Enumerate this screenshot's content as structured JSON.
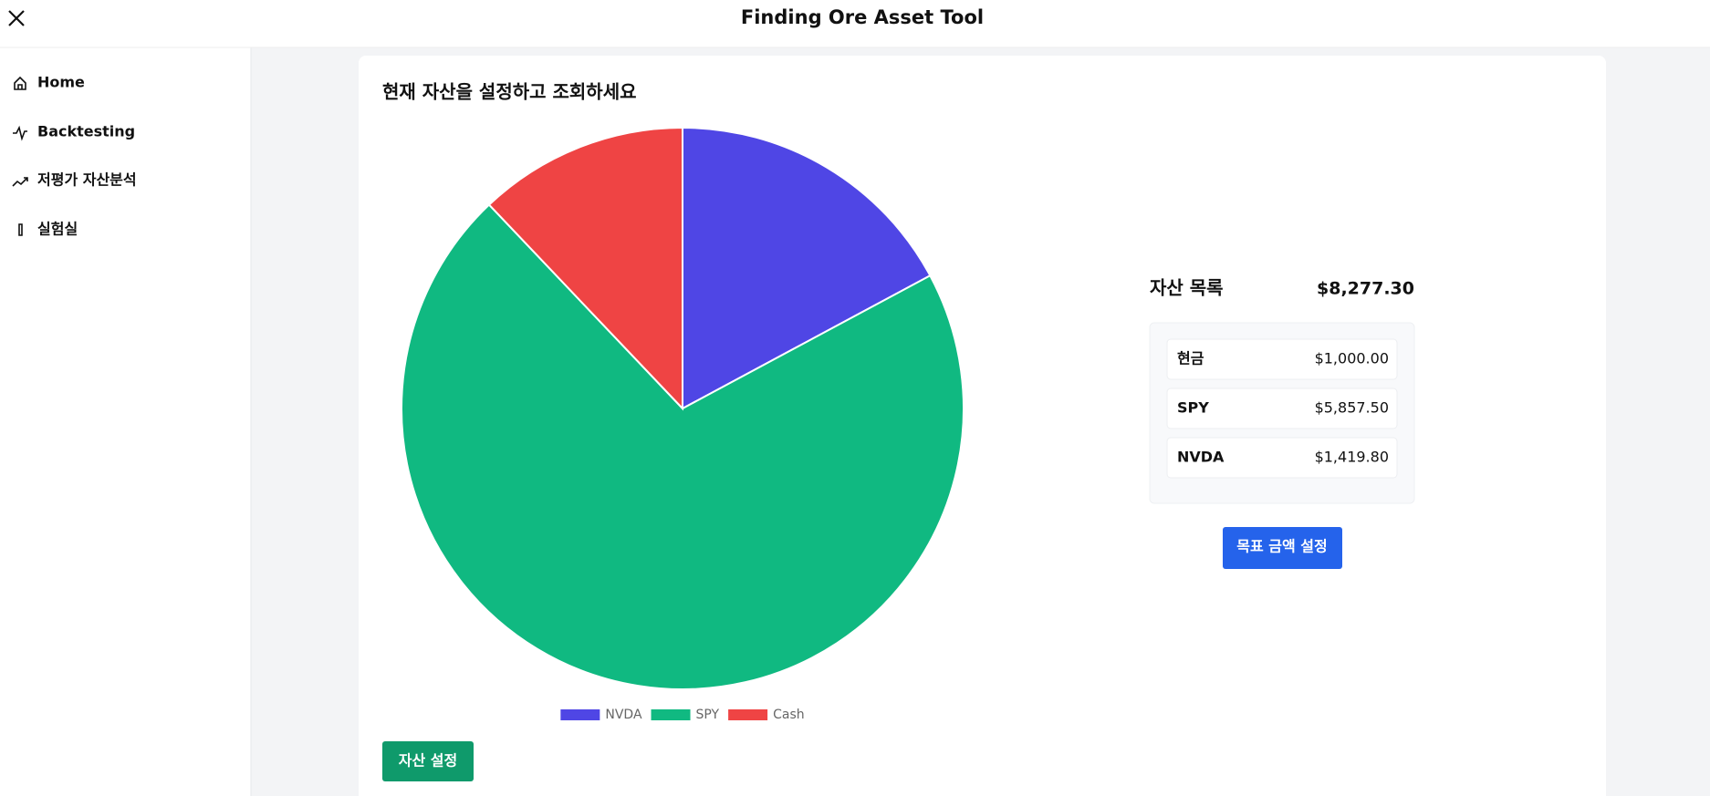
{
  "header": {
    "title": "Finding Ore Asset Tool"
  },
  "nav": [
    "Home",
    "Backtesting",
    "저평가 자산분석",
    "실험실"
  ],
  "panel": {
    "title": "현재 자산을 설정하고 조회하세요",
    "button": "자산 설정"
  },
  "chart_data": {
    "type": "pie",
    "categories": [
      "NVDA",
      "SPY",
      "Cash"
    ],
    "values": [
      1419.8,
      5857.5,
      1000
    ],
    "colors": [
      "#4f46e5",
      "#10b981",
      "#ef4444"
    ],
    "legend": "bottom"
  },
  "assets": {
    "title": "자산 목록",
    "total": "$8,277.30",
    "items": [
      {
        "name": "현금",
        "value": "$1,000.00"
      },
      {
        "name": "SPY",
        "value": "$5,857.50"
      },
      {
        "name": "NVDA",
        "value": "$1,419.80"
      }
    ],
    "button": "목표 금액 설정"
  }
}
